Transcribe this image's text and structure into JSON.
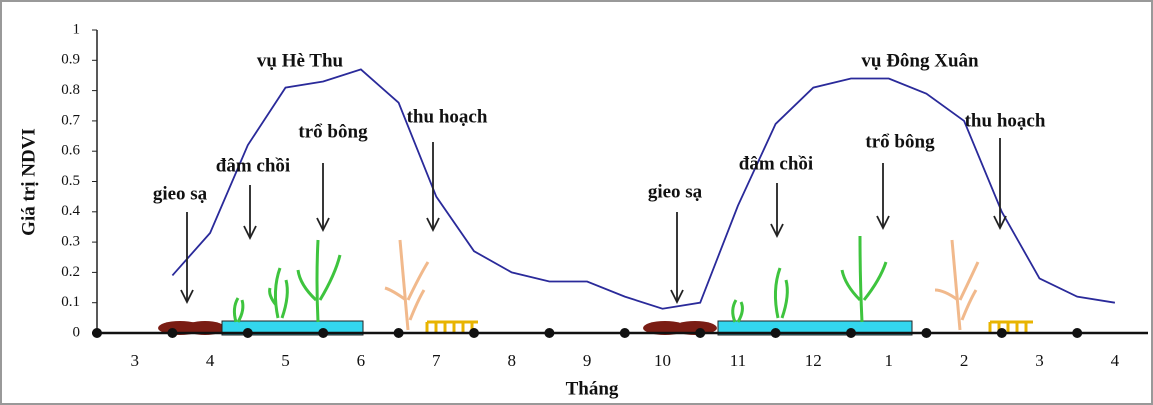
{
  "chart_data": {
    "type": "line",
    "ylabel": "Giá trị NDVI",
    "xlabel": "Tháng",
    "categories": [
      null,
      "3",
      null,
      "4",
      null,
      "5",
      null,
      "6",
      null,
      "7",
      null,
      "8",
      null,
      "9",
      null,
      "10",
      null,
      "11",
      null,
      "12",
      null,
      "1",
      null,
      "2",
      null,
      "3",
      null,
      "4"
    ],
    "series": [
      {
        "color": "#2a2a9a",
        "values": [
          null,
          null,
          0.19,
          0.33,
          0.62,
          0.81,
          0.83,
          0.87,
          0.76,
          0.45,
          0.27,
          0.2,
          0.17,
          0.17,
          0.12,
          0.08,
          0.1,
          0.42,
          0.69,
          0.81,
          0.84,
          0.84,
          0.79,
          0.7,
          0.4,
          0.18,
          0.12,
          0.1
        ]
      }
    ],
    "ylim": [
      0,
      1
    ],
    "yticks": [
      0,
      0.1,
      0.2,
      0.3,
      0.4,
      0.5,
      0.6,
      0.7,
      0.8,
      0.9,
      1
    ],
    "annotations": [
      "vụ Hè Thu",
      "gieo sạ",
      "đâm chồi",
      "trổ bông",
      "thu hoạch",
      "gieo sạ",
      "đâm chồi",
      "trổ bông",
      "vụ Đông Xuân",
      "thu hoạch"
    ]
  }
}
